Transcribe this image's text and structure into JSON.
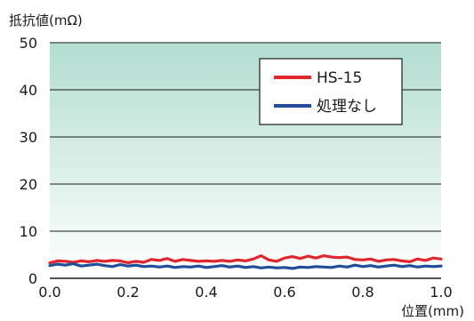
{
  "chart_data": {
    "type": "line",
    "title": "",
    "ylabel": "抵抗値(mΩ)",
    "xlabel": "位置(mm)",
    "xlim": [
      0.0,
      1.0
    ],
    "ylim": [
      0,
      50
    ],
    "x_ticks": [
      "0.0",
      "0.2",
      "0.4",
      "0.6",
      "0.8",
      "1.0"
    ],
    "y_ticks": [
      "0",
      "10",
      "20",
      "30",
      "40",
      "50"
    ],
    "grid": true,
    "legend_position": "top-right",
    "background_gradient": [
      "#b2ddd0",
      "#ffffff"
    ],
    "series": [
      {
        "name": "HS-15",
        "color": "#e0262d",
        "x": [
          0.0,
          0.02,
          0.04,
          0.06,
          0.08,
          0.1,
          0.12,
          0.14,
          0.16,
          0.18,
          0.2,
          0.22,
          0.24,
          0.26,
          0.28,
          0.3,
          0.32,
          0.34,
          0.36,
          0.38,
          0.4,
          0.42,
          0.44,
          0.46,
          0.48,
          0.5,
          0.52,
          0.54,
          0.56,
          0.58,
          0.6,
          0.62,
          0.64,
          0.66,
          0.68,
          0.7,
          0.72,
          0.74,
          0.76,
          0.78,
          0.8,
          0.82,
          0.84,
          0.86,
          0.88,
          0.9,
          0.92,
          0.94,
          0.96,
          0.98,
          1.0
        ],
        "y": [
          3.3,
          3.7,
          3.6,
          3.4,
          3.7,
          3.5,
          3.8,
          3.6,
          3.8,
          3.7,
          3.3,
          3.6,
          3.4,
          4.0,
          3.8,
          4.2,
          3.6,
          4.0,
          3.8,
          3.6,
          3.7,
          3.6,
          3.8,
          3.6,
          3.9,
          3.7,
          4.1,
          4.8,
          3.9,
          3.6,
          4.3,
          4.6,
          4.2,
          4.7,
          4.3,
          4.8,
          4.5,
          4.4,
          4.5,
          4.0,
          3.9,
          4.1,
          3.6,
          3.9,
          4.0,
          3.7,
          3.5,
          4.1,
          3.8,
          4.3,
          4.1
        ]
      },
      {
        "name": "処理なし",
        "color": "#1f4e9a",
        "x": [
          0.0,
          0.02,
          0.04,
          0.06,
          0.08,
          0.1,
          0.12,
          0.14,
          0.16,
          0.18,
          0.2,
          0.22,
          0.24,
          0.26,
          0.28,
          0.3,
          0.32,
          0.34,
          0.36,
          0.38,
          0.4,
          0.42,
          0.44,
          0.46,
          0.48,
          0.5,
          0.52,
          0.54,
          0.56,
          0.58,
          0.6,
          0.62,
          0.64,
          0.66,
          0.68,
          0.7,
          0.72,
          0.74,
          0.76,
          0.78,
          0.8,
          0.82,
          0.84,
          0.86,
          0.88,
          0.9,
          0.92,
          0.94,
          0.96,
          0.98,
          1.0
        ],
        "y": [
          2.7,
          3.0,
          2.8,
          3.1,
          2.6,
          2.8,
          3.0,
          2.7,
          2.5,
          2.9,
          2.6,
          2.8,
          2.5,
          2.6,
          2.4,
          2.6,
          2.3,
          2.5,
          2.4,
          2.6,
          2.3,
          2.5,
          2.7,
          2.4,
          2.6,
          2.3,
          2.5,
          2.2,
          2.4,
          2.2,
          2.3,
          2.1,
          2.4,
          2.3,
          2.5,
          2.4,
          2.3,
          2.6,
          2.4,
          2.8,
          2.5,
          2.7,
          2.4,
          2.6,
          2.8,
          2.5,
          2.7,
          2.4,
          2.6,
          2.5,
          2.6
        ]
      }
    ]
  }
}
